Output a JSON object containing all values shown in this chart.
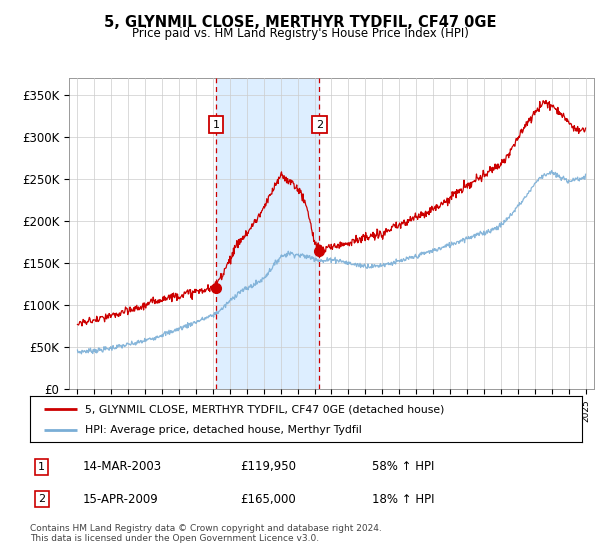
{
  "title": "5, GLYNMIL CLOSE, MERTHYR TYDFIL, CF47 0GE",
  "subtitle": "Price paid vs. HM Land Registry's House Price Index (HPI)",
  "ylabel_ticks": [
    "£0",
    "£50K",
    "£100K",
    "£150K",
    "£200K",
    "£250K",
    "£300K",
    "£350K"
  ],
  "ylim": [
    0,
    370000
  ],
  "xlim_start": 1994.5,
  "xlim_end": 2025.5,
  "sale1_year": 2003.2,
  "sale1_price": 119950,
  "sale2_year": 2009.29,
  "sale2_price": 165000,
  "marker_y": 315000,
  "legend_line1": "5, GLYNMIL CLOSE, MERTHYR TYDFIL, CF47 0GE (detached house)",
  "legend_line2": "HPI: Average price, detached house, Merthyr Tydfil",
  "annotation1_label": "1",
  "annotation1_date": "14-MAR-2003",
  "annotation1_price": "£119,950",
  "annotation1_hpi": "58% ↑ HPI",
  "annotation2_label": "2",
  "annotation2_date": "15-APR-2009",
  "annotation2_price": "£165,000",
  "annotation2_hpi": "18% ↑ HPI",
  "footnote": "Contains HM Land Registry data © Crown copyright and database right 2024.\nThis data is licensed under the Open Government Licence v3.0.",
  "hpi_color": "#7aaed6",
  "price_color": "#cc0000",
  "shade_color": "#ddeeff",
  "grid_color": "#cccccc",
  "background_color": "#ffffff",
  "hpi_points": [
    [
      1995.0,
      44000
    ],
    [
      1995.5,
      45500
    ],
    [
      1996.0,
      46000
    ],
    [
      1996.5,
      47000
    ],
    [
      1997.0,
      49000
    ],
    [
      1997.5,
      51000
    ],
    [
      1998.0,
      53000
    ],
    [
      1998.5,
      55000
    ],
    [
      1999.0,
      58000
    ],
    [
      1999.5,
      61000
    ],
    [
      2000.0,
      65000
    ],
    [
      2000.5,
      68000
    ],
    [
      2001.0,
      72000
    ],
    [
      2001.5,
      76000
    ],
    [
      2002.0,
      80000
    ],
    [
      2002.5,
      84000
    ],
    [
      2003.0,
      88000
    ],
    [
      2003.5,
      95000
    ],
    [
      2004.0,
      105000
    ],
    [
      2004.5,
      115000
    ],
    [
      2005.0,
      120000
    ],
    [
      2005.5,
      125000
    ],
    [
      2006.0,
      132000
    ],
    [
      2006.5,
      145000
    ],
    [
      2007.0,
      158000
    ],
    [
      2007.5,
      162000
    ],
    [
      2008.0,
      160000
    ],
    [
      2008.5,
      158000
    ],
    [
      2009.0,
      156000
    ],
    [
      2009.5,
      152000
    ],
    [
      2010.0,
      155000
    ],
    [
      2010.5,
      153000
    ],
    [
      2011.0,
      150000
    ],
    [
      2011.5,
      148000
    ],
    [
      2012.0,
      147000
    ],
    [
      2012.5,
      146000
    ],
    [
      2013.0,
      148000
    ],
    [
      2013.5,
      150000
    ],
    [
      2014.0,
      152000
    ],
    [
      2014.5,
      155000
    ],
    [
      2015.0,
      158000
    ],
    [
      2015.5,
      162000
    ],
    [
      2016.0,
      165000
    ],
    [
      2016.5,
      168000
    ],
    [
      2017.0,
      172000
    ],
    [
      2017.5,
      176000
    ],
    [
      2018.0,
      180000
    ],
    [
      2018.5,
      183000
    ],
    [
      2019.0,
      186000
    ],
    [
      2019.5,
      190000
    ],
    [
      2020.0,
      195000
    ],
    [
      2020.5,
      205000
    ],
    [
      2021.0,
      218000
    ],
    [
      2021.5,
      230000
    ],
    [
      2022.0,
      245000
    ],
    [
      2022.5,
      255000
    ],
    [
      2023.0,
      258000
    ],
    [
      2023.5,
      252000
    ],
    [
      2024.0,
      248000
    ],
    [
      2024.5,
      250000
    ],
    [
      2025.0,
      252000
    ]
  ],
  "price_points": [
    [
      1995.0,
      78000
    ],
    [
      1995.5,
      80000
    ],
    [
      1996.0,
      82000
    ],
    [
      1996.5,
      84000
    ],
    [
      1997.0,
      87000
    ],
    [
      1997.5,
      90000
    ],
    [
      1998.0,
      93000
    ],
    [
      1998.5,
      96000
    ],
    [
      1999.0,
      100000
    ],
    [
      1999.5,
      104000
    ],
    [
      2000.0,
      108000
    ],
    [
      2000.5,
      110000
    ],
    [
      2001.0,
      112000
    ],
    [
      2001.5,
      114000
    ],
    [
      2002.0,
      116000
    ],
    [
      2002.5,
      118000
    ],
    [
      2003.0,
      120000
    ],
    [
      2003.5,
      135000
    ],
    [
      2004.0,
      155000
    ],
    [
      2004.5,
      175000
    ],
    [
      2005.0,
      185000
    ],
    [
      2005.5,
      200000
    ],
    [
      2006.0,
      215000
    ],
    [
      2006.5,
      235000
    ],
    [
      2007.0,
      255000
    ],
    [
      2007.5,
      248000
    ],
    [
      2008.0,
      240000
    ],
    [
      2008.5,
      220000
    ],
    [
      2009.0,
      175000
    ],
    [
      2009.5,
      165000
    ],
    [
      2010.0,
      170000
    ],
    [
      2010.5,
      172000
    ],
    [
      2011.0,
      175000
    ],
    [
      2011.5,
      178000
    ],
    [
      2012.0,
      180000
    ],
    [
      2012.5,
      182000
    ],
    [
      2013.0,
      185000
    ],
    [
      2013.5,
      190000
    ],
    [
      2014.0,
      195000
    ],
    [
      2014.5,
      200000
    ],
    [
      2015.0,
      205000
    ],
    [
      2015.5,
      210000
    ],
    [
      2016.0,
      215000
    ],
    [
      2016.5,
      220000
    ],
    [
      2017.0,
      228000
    ],
    [
      2017.5,
      235000
    ],
    [
      2018.0,
      242000
    ],
    [
      2018.5,
      248000
    ],
    [
      2019.0,
      255000
    ],
    [
      2019.5,
      262000
    ],
    [
      2020.0,
      268000
    ],
    [
      2020.5,
      282000
    ],
    [
      2021.0,
      298000
    ],
    [
      2021.5,
      315000
    ],
    [
      2022.0,
      330000
    ],
    [
      2022.5,
      342000
    ],
    [
      2023.0,
      338000
    ],
    [
      2023.5,
      330000
    ],
    [
      2024.0,
      318000
    ],
    [
      2024.5,
      308000
    ],
    [
      2025.0,
      310000
    ]
  ]
}
